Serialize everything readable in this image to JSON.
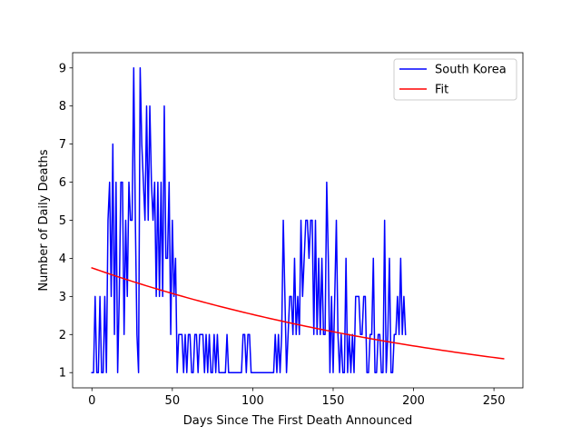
{
  "chart_data": {
    "type": "line",
    "xlabel": "Days Since The First Death Announced",
    "ylabel": "Number of Daily Deaths",
    "xlim": [
      -12,
      268
    ],
    "ylim": [
      0.6,
      9.4
    ],
    "xticks": [
      0,
      50,
      100,
      150,
      200,
      250
    ],
    "yticks": [
      1,
      2,
      3,
      4,
      5,
      6,
      7,
      8,
      9
    ],
    "legend_position": "top-right",
    "grid": false,
    "series": [
      {
        "name": "South Korea",
        "color": "#0000ff",
        "x": [
          0,
          1,
          2,
          3,
          4,
          5,
          6,
          7,
          8,
          9,
          10,
          11,
          12,
          13,
          14,
          15,
          16,
          17,
          18,
          19,
          20,
          21,
          22,
          23,
          24,
          25,
          26,
          27,
          28,
          29,
          30,
          31,
          32,
          33,
          34,
          35,
          36,
          37,
          38,
          39,
          40,
          41,
          42,
          43,
          44,
          45,
          46,
          47,
          48,
          49,
          50,
          51,
          52,
          53,
          54,
          55,
          56,
          57,
          58,
          59,
          60,
          61,
          62,
          63,
          64,
          65,
          66,
          67,
          68,
          69,
          70,
          71,
          72,
          73,
          74,
          75,
          76,
          77,
          78,
          79,
          80,
          81,
          82,
          83,
          84,
          85,
          86,
          87,
          88,
          89,
          90,
          91,
          92,
          93,
          94,
          95,
          96,
          97,
          98,
          99,
          100,
          101,
          102,
          103,
          104,
          105,
          106,
          107,
          108,
          109,
          110,
          111,
          112,
          113,
          114,
          115,
          116,
          117,
          118,
          119,
          120,
          121,
          122,
          123,
          124,
          125,
          126,
          127,
          128,
          129,
          130,
          131,
          132,
          133,
          134,
          135,
          136,
          137,
          138,
          139,
          140,
          141,
          142,
          143,
          144,
          145,
          146,
          147,
          148,
          149,
          150,
          151,
          152,
          153,
          154,
          155,
          156,
          157,
          158,
          159,
          160,
          161,
          162,
          163,
          164,
          165,
          166,
          167,
          168,
          169,
          170,
          171,
          172,
          173,
          174,
          175,
          176,
          177,
          178,
          179,
          180,
          181,
          182,
          183,
          184,
          185,
          186,
          187,
          188,
          189,
          190,
          191,
          192,
          193,
          194,
          195
        ],
        "values": [
          1,
          1,
          3,
          1,
          1,
          3,
          1,
          1,
          3,
          1,
          5,
          6,
          3,
          7,
          2,
          6,
          1,
          3,
          6,
          6,
          2,
          5,
          3,
          6,
          5,
          5,
          9,
          5,
          2,
          1,
          9,
          7,
          6,
          5,
          8,
          5,
          8,
          6,
          5,
          6,
          3,
          6,
          3,
          6,
          3,
          8,
          4,
          4,
          6,
          2,
          5,
          3,
          4,
          1,
          2,
          2,
          2,
          1,
          2,
          1,
          2,
          2,
          1,
          1,
          2,
          2,
          1,
          2,
          2,
          2,
          1,
          2,
          1,
          2,
          1,
          1,
          2,
          1,
          2,
          1,
          1,
          1,
          1,
          1,
          2,
          1,
          1,
          1,
          1,
          1,
          1,
          1,
          1,
          1,
          2,
          2,
          1,
          2,
          2,
          1,
          1,
          1,
          1,
          1,
          1,
          1,
          1,
          1,
          1,
          1,
          1,
          1,
          1,
          1,
          2,
          1,
          2,
          1,
          2,
          5,
          3,
          1,
          2,
          3,
          3,
          2,
          4,
          2,
          3,
          2,
          5,
          3,
          4,
          5,
          5,
          4,
          5,
          5,
          2,
          5,
          2,
          4,
          2,
          4,
          2,
          2,
          6,
          4,
          1,
          3,
          1,
          3,
          5,
          2,
          1,
          2,
          1,
          1,
          4,
          1,
          2,
          1,
          2,
          1,
          3,
          3,
          3,
          2,
          2,
          3,
          3,
          1,
          1,
          2,
          2,
          4,
          1,
          1,
          2,
          2,
          1,
          1,
          5,
          1,
          2,
          4,
          1,
          1,
          2,
          2,
          3,
          2,
          4,
          2,
          3,
          2
        ],
        "linewidth": 1.5
      },
      {
        "name": "Fit",
        "color": "#ff0000",
        "fit": {
          "model": "exponential",
          "a": 3.75,
          "b": -0.00395
        },
        "x_range": [
          0,
          256
        ],
        "linewidth": 1.5
      }
    ]
  }
}
